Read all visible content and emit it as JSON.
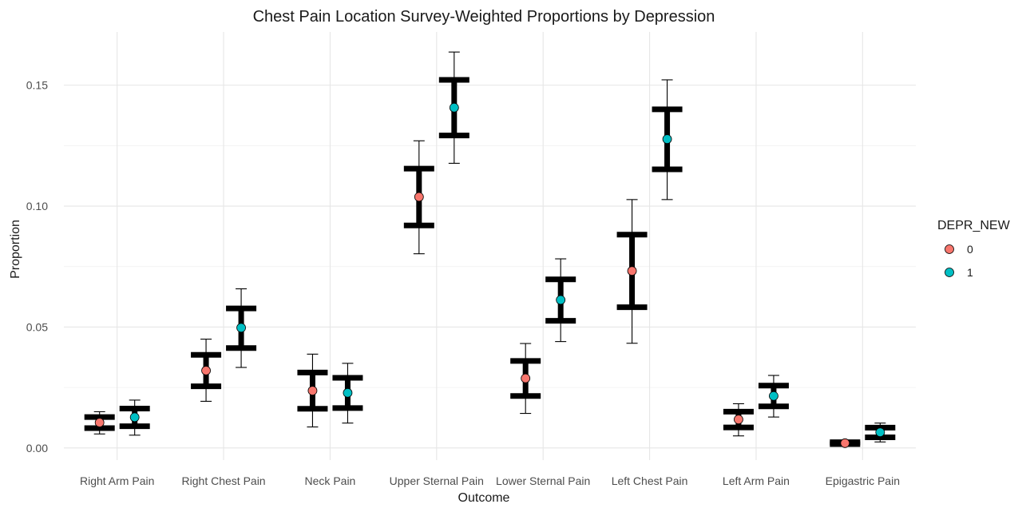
{
  "chart_data": {
    "type": "scatter",
    "title": "Chest Pain Location Survey-Weighted Proportions by Depression",
    "xlabel": "Outcome",
    "ylabel": "Proportion",
    "ylim": [
      -0.005,
      0.172
    ],
    "yticks": [
      0.0,
      0.05,
      0.1,
      0.15
    ],
    "ytick_labels": [
      "0.00",
      "0.05",
      "0.10",
      "0.15"
    ],
    "grid": true,
    "legend": {
      "title": "DEPR_NEW",
      "placement": "right"
    },
    "categories": [
      "Right Arm Pain",
      "Right Chest Pain",
      "Neck Pain",
      "Upper Sternal Pain",
      "Lower Sternal Pain",
      "Left Chest Pain",
      "Left Arm Pain",
      "Epigastric Pain"
    ],
    "series": [
      {
        "name": "0",
        "color": "#F8766D",
        "values": [
          0.0105,
          0.032,
          0.0237,
          0.1038,
          0.0288,
          0.0732,
          0.0118,
          0.002
        ],
        "ci_lower": [
          0.0058,
          0.0193,
          0.0087,
          0.0803,
          0.0143,
          0.0433,
          0.005,
          0.0013
        ],
        "ci_upper": [
          0.015,
          0.045,
          0.0388,
          0.127,
          0.0432,
          0.1027,
          0.0183,
          0.0027
        ],
        "se_lower": [
          0.0082,
          0.0255,
          0.0162,
          0.092,
          0.0215,
          0.0582,
          0.0085,
          0.0016
        ],
        "se_upper": [
          0.0128,
          0.0385,
          0.0312,
          0.1155,
          0.036,
          0.0882,
          0.015,
          0.0024
        ]
      },
      {
        "name": "1",
        "color": "#00BFC4",
        "values": [
          0.0127,
          0.0497,
          0.0228,
          0.1407,
          0.0612,
          0.1277,
          0.0215,
          0.0065
        ],
        "ci_lower": [
          0.0053,
          0.0333,
          0.0103,
          0.1177,
          0.044,
          0.1027,
          0.0128,
          0.0025
        ],
        "ci_upper": [
          0.0198,
          0.0658,
          0.035,
          0.1637,
          0.0782,
          0.1522,
          0.03,
          0.0103
        ],
        "se_lower": [
          0.009,
          0.0413,
          0.0165,
          0.1292,
          0.0526,
          0.1152,
          0.0172,
          0.0044
        ],
        "se_upper": [
          0.0163,
          0.0577,
          0.029,
          0.1522,
          0.0697,
          0.14,
          0.0258,
          0.0084
        ]
      }
    ]
  }
}
